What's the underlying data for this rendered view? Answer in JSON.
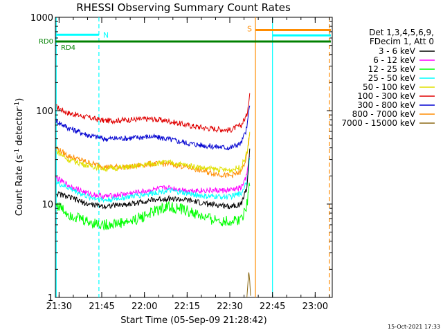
{
  "chart_data": {
    "type": "line",
    "title": "RHESSI Observing Summary Count Rates",
    "xlabel": "Start Time (05-Sep-09 21:28:42)",
    "ylabel_main": "Count Rate (s",
    "ylabel_sup1": "-1",
    "ylabel_mid": " detector",
    "ylabel_sup2": "-1",
    "ylabel_end": ")",
    "yscale": "log",
    "ylim": [
      1,
      1000
    ],
    "xlim": [
      "21:28:42",
      "23:06:00"
    ],
    "xticks": [
      "21:30",
      "21:45",
      "22:00",
      "22:15",
      "22:30",
      "22:45",
      "23:00"
    ],
    "yticks": [
      {
        "value": 1,
        "label": "1"
      },
      {
        "value": 10,
        "label": "10"
      },
      {
        "value": 100,
        "label": "100"
      },
      {
        "value": 1000,
        "label": "1000"
      }
    ],
    "legend": {
      "placement": "top-right",
      "header": [
        "Det 1,3,4,5,6,9,",
        "FDecim 1, Att 0"
      ],
      "entries": [
        {
          "label": "3 - 6 keV",
          "color": "#000000"
        },
        {
          "label": "6 - 12 keV",
          "color": "#ff00ff"
        },
        {
          "label": "12 - 25 keV",
          "color": "#00ff00"
        },
        {
          "label": "25 - 50 keV",
          "color": "#00ffff"
        },
        {
          "label": "50 - 100 keV",
          "color": "#e0e000"
        },
        {
          "label": "100 - 300 keV",
          "color": "#e00000"
        },
        {
          "label": "300 - 800 keV",
          "color": "#0000d0"
        },
        {
          "label": "800 - 7000 keV",
          "color": "#ff8c00"
        },
        {
          "label": "7000 - 15000 keV",
          "color": "#8b6914"
        }
      ]
    },
    "series": [
      {
        "label_ref": 5,
        "color": "#e00000",
        "points": [
          [
            "21:29",
            110
          ],
          [
            "21:33",
            95
          ],
          [
            "21:40",
            85
          ],
          [
            "21:46",
            78
          ],
          [
            "21:55",
            80
          ],
          [
            "22:02",
            82
          ],
          [
            "22:08",
            78
          ],
          [
            "22:15",
            70
          ],
          [
            "22:22",
            65
          ],
          [
            "22:30",
            62
          ],
          [
            "22:34",
            70
          ],
          [
            "22:36",
            90
          ],
          [
            "22:37",
            155
          ]
        ]
      },
      {
        "label_ref": 6,
        "color": "#0000d0",
        "points": [
          [
            "21:29",
            78
          ],
          [
            "21:33",
            66
          ],
          [
            "21:40",
            55
          ],
          [
            "21:46",
            50
          ],
          [
            "21:55",
            51
          ],
          [
            "22:02",
            53
          ],
          [
            "22:08",
            50
          ],
          [
            "22:15",
            45
          ],
          [
            "22:22",
            42
          ],
          [
            "22:30",
            40
          ],
          [
            "22:34",
            45
          ],
          [
            "22:36",
            65
          ],
          [
            "22:37",
            120
          ]
        ]
      },
      {
        "label_ref": 7,
        "color": "#ff8c00",
        "points": [
          [
            "21:29",
            40
          ],
          [
            "21:33",
            33
          ],
          [
            "21:40",
            28
          ],
          [
            "21:46",
            25
          ],
          [
            "21:55",
            25
          ],
          [
            "22:02",
            27
          ],
          [
            "22:08",
            27
          ],
          [
            "22:15",
            25
          ],
          [
            "22:22",
            22
          ],
          [
            "22:30",
            20
          ],
          [
            "22:34",
            22
          ],
          [
            "22:36",
            32
          ],
          [
            "22:37",
            55
          ]
        ]
      },
      {
        "label_ref": 4,
        "color": "#e0e000",
        "points": [
          [
            "21:29",
            37
          ],
          [
            "21:33",
            30
          ],
          [
            "21:40",
            26
          ],
          [
            "21:46",
            24
          ],
          [
            "21:55",
            25
          ],
          [
            "22:02",
            27
          ],
          [
            "22:08",
            28
          ],
          [
            "22:15",
            26
          ],
          [
            "22:22",
            24
          ],
          [
            "22:30",
            23
          ],
          [
            "22:34",
            25
          ],
          [
            "22:36",
            35
          ],
          [
            "22:37",
            60
          ]
        ]
      },
      {
        "label_ref": 1,
        "color": "#ff00ff",
        "points": [
          [
            "21:29",
            19
          ],
          [
            "21:33",
            16
          ],
          [
            "21:40",
            13
          ],
          [
            "21:46",
            12
          ],
          [
            "21:55",
            13
          ],
          [
            "22:02",
            14
          ],
          [
            "22:08",
            15
          ],
          [
            "22:15",
            14
          ],
          [
            "22:22",
            14
          ],
          [
            "22:30",
            14
          ],
          [
            "22:34",
            15
          ],
          [
            "22:36",
            20
          ],
          [
            "22:37",
            35
          ]
        ]
      },
      {
        "label_ref": 3,
        "color": "#00ffff",
        "points": [
          [
            "21:29",
            17
          ],
          [
            "21:33",
            15
          ],
          [
            "21:40",
            12
          ],
          [
            "21:46",
            11
          ],
          [
            "21:55",
            12
          ],
          [
            "22:02",
            13
          ],
          [
            "22:08",
            14
          ],
          [
            "22:15",
            13
          ],
          [
            "22:22",
            12
          ],
          [
            "22:30",
            12
          ],
          [
            "22:34",
            13
          ],
          [
            "22:36",
            18
          ],
          [
            "22:37",
            30
          ]
        ]
      },
      {
        "label_ref": 0,
        "color": "#000000",
        "points": [
          [
            "21:29",
            13
          ],
          [
            "21:33",
            12
          ],
          [
            "21:40",
            10
          ],
          [
            "21:46",
            9.5
          ],
          [
            "21:55",
            10
          ],
          [
            "22:02",
            11
          ],
          [
            "22:08",
            11.5
          ],
          [
            "22:15",
            11
          ],
          [
            "22:22",
            10
          ],
          [
            "22:30",
            9.5
          ],
          [
            "22:34",
            10
          ],
          [
            "22:36",
            15
          ],
          [
            "22:37",
            40
          ]
        ]
      },
      {
        "label_ref": 2,
        "color": "#00ff00",
        "points": [
          [
            "21:29",
            10
          ],
          [
            "21:33",
            8
          ],
          [
            "21:40",
            6.5
          ],
          [
            "21:46",
            6
          ],
          [
            "21:55",
            6.5
          ],
          [
            "22:02",
            8
          ],
          [
            "22:08",
            9.5
          ],
          [
            "22:15",
            8.5
          ],
          [
            "22:22",
            7
          ],
          [
            "22:30",
            6.5
          ],
          [
            "22:34",
            7
          ],
          [
            "22:36",
            10
          ],
          [
            "22:37",
            18
          ]
        ]
      },
      {
        "label_ref": 8,
        "color": "#8b6914",
        "points": [
          [
            "22:36",
            1
          ],
          [
            "22:36:40",
            1.9
          ],
          [
            "22:37",
            1.5
          ],
          [
            "22:37:20",
            1
          ]
        ]
      }
    ],
    "markers": {
      "rd0_label": "RD0",
      "rd4_label": "RD4",
      "rd0_level": 550,
      "rd_color": "#008000",
      "n_label": "N",
      "n_color": "#00ffff",
      "n_level": 650,
      "n_start": "21:29",
      "n_end": "21:44",
      "s_label": "S",
      "s_color": "#ff8c00",
      "s_level": 730,
      "s_start": "22:39",
      "s_end": "23:05:30",
      "cyan_bar_start": "22:45",
      "cyan_bar_end": "23:05:30",
      "cyan_bar_level": 640,
      "v_solid_cyan": [
        "21:29",
        "22:45"
      ],
      "v_dashed_cyan": [
        "21:44"
      ],
      "v_solid_orange": [
        "22:39"
      ],
      "v_dashed_orange": [
        "23:05"
      ]
    },
    "timestamp": "15-Oct-2021 17:33",
    "grid": false
  }
}
